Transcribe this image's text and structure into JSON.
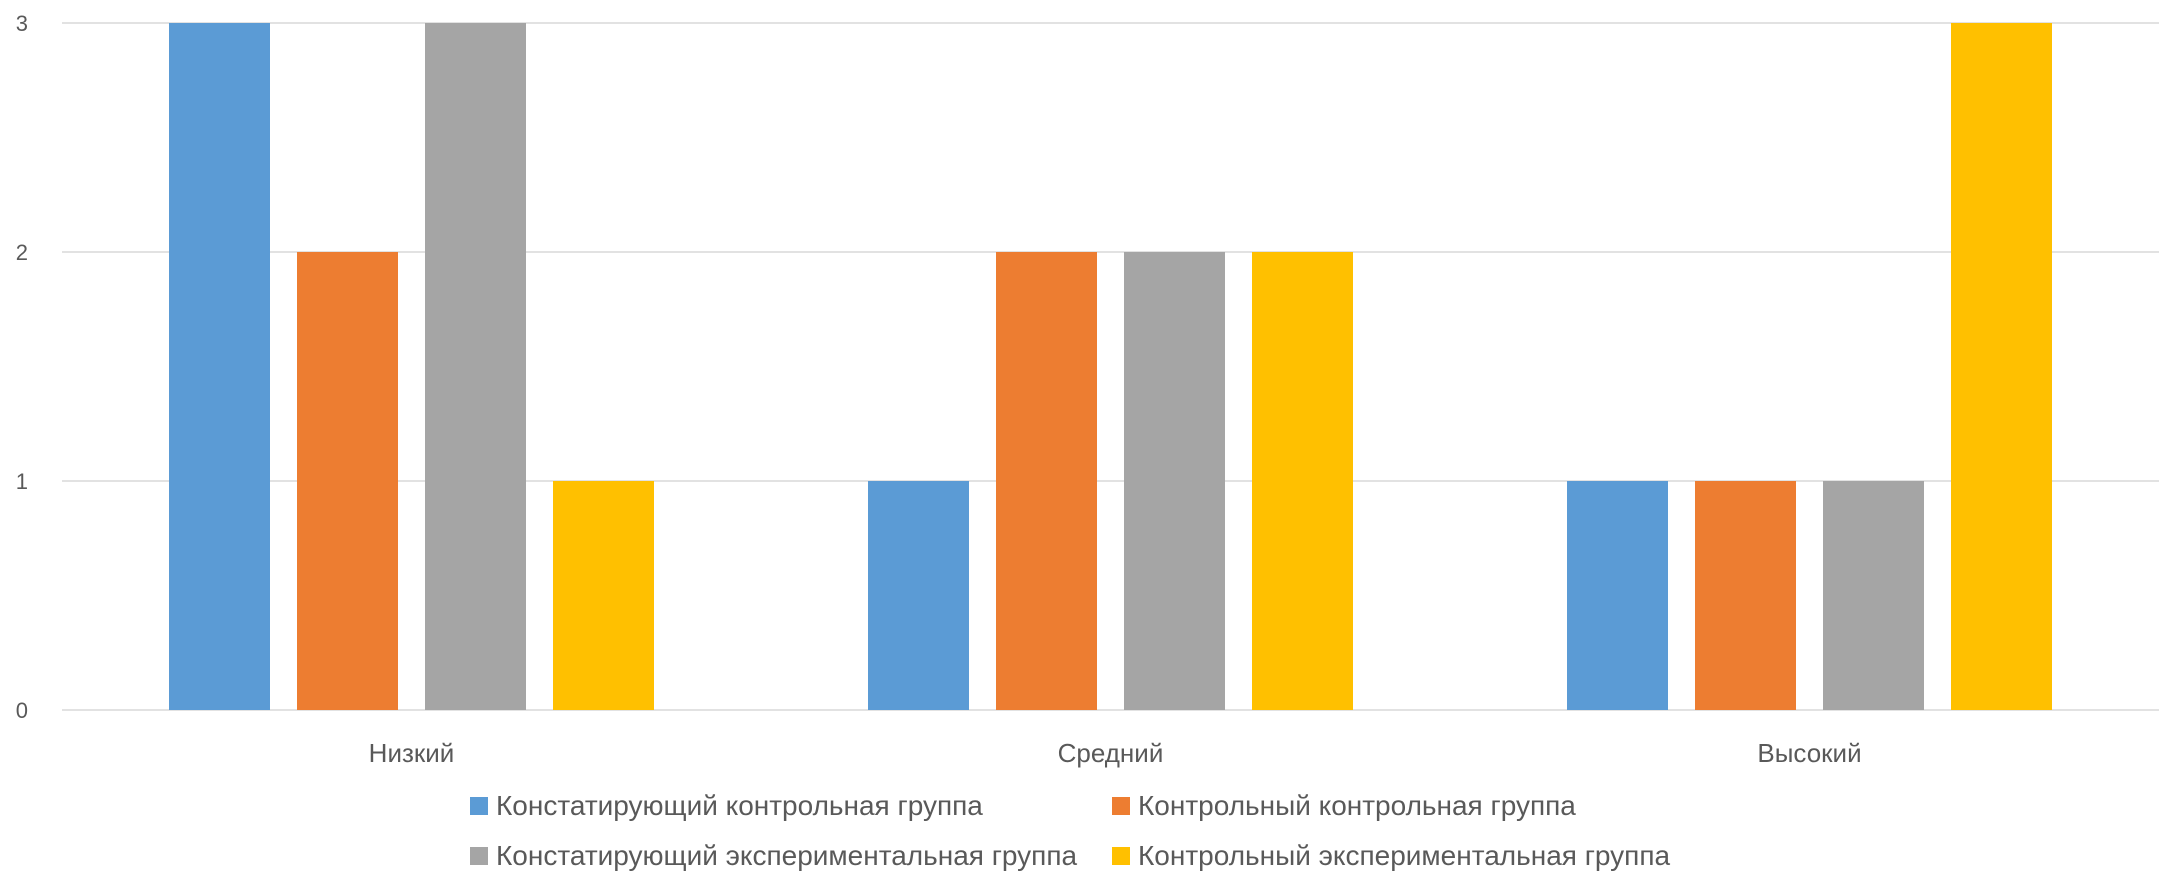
{
  "chart_data": {
    "type": "bar",
    "categories": [
      "Низкий",
      "Средний",
      "Высокий"
    ],
    "series": [
      {
        "name": "Констатирующий контрольная группа",
        "values": [
          3,
          1,
          1
        ],
        "color": "#5B9BD5"
      },
      {
        "name": "Контрольный контрольная группа",
        "values": [
          2,
          2,
          1
        ],
        "color": "#ED7D31"
      },
      {
        "name": "Констатирующий экспериментальная группа",
        "values": [
          3,
          2,
          1
        ],
        "color": "#A5A5A5"
      },
      {
        "name": "Контрольный экспериментальная группа",
        "values": [
          1,
          2,
          3
        ],
        "color": "#FFC000"
      }
    ],
    "yticks": [
      "0",
      "1",
      "2",
      "3"
    ],
    "ylim": [
      0,
      3
    ],
    "grid": true,
    "legend_position": "bottom",
    "title": "",
    "xlabel": "",
    "ylabel": ""
  }
}
